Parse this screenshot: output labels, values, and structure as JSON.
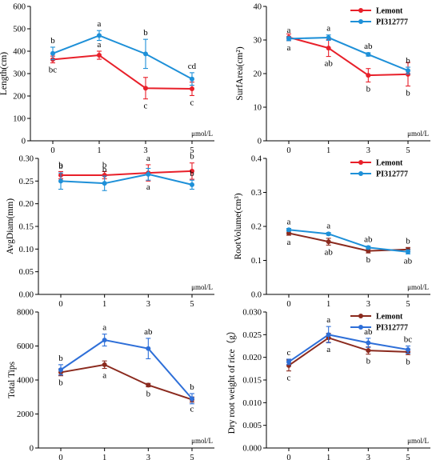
{
  "chart_data": [
    {
      "id": "length",
      "type": "line",
      "ylabel": "Length(cm)",
      "unit": "μmol/L",
      "categories": [
        "0",
        "1",
        "3",
        "5"
      ],
      "ylim": [
        0,
        600
      ],
      "yticks": [
        0,
        100,
        200,
        300,
        400,
        500,
        600
      ],
      "legend": null,
      "series": [
        {
          "name": "Lemont",
          "color": "#e8202a",
          "values": [
            363,
            382,
            235,
            232
          ],
          "errors": [
            15,
            18,
            48,
            30
          ],
          "labels": [
            "bc",
            "a",
            "c",
            "c"
          ]
        },
        {
          "name": "PI312777",
          "color": "#1e90d8",
          "values": [
            390,
            470,
            388,
            276
          ],
          "errors": [
            28,
            22,
            65,
            28
          ],
          "labels": [
            "b",
            "a",
            "b",
            "cd"
          ]
        }
      ]
    },
    {
      "id": "surfarea",
      "type": "line",
      "ylabel": "SurfArea(cm²)",
      "unit": "μmol/L",
      "categories": [
        "0",
        "1",
        "3",
        "5"
      ],
      "ylim": [
        0,
        40
      ],
      "yticks": [
        0,
        10,
        20,
        30,
        40
      ],
      "legend": "top-right",
      "series": [
        {
          "name": "Lemont",
          "color": "#e8202a",
          "values": [
            30.8,
            27.6,
            19.5,
            19.8
          ],
          "errors": [
            1.0,
            2.5,
            2.0,
            3.5
          ],
          "labels": [
            "a",
            "ab",
            "b",
            "b"
          ]
        },
        {
          "name": "PI312777",
          "color": "#1e90d8",
          "values": [
            30.4,
            30.7,
            25.7,
            20.9
          ],
          "errors": [
            0.6,
            0.8,
            0.5,
            1.0
          ],
          "labels": [
            "a",
            "a",
            "ab",
            "b"
          ]
        }
      ]
    },
    {
      "id": "avgdiam",
      "type": "line",
      "ylabel": "AvgDiam(mm)",
      "unit": "μmol/L",
      "categories": [
        "0",
        "1",
        "3",
        "5"
      ],
      "ylim": [
        0.0,
        0.3
      ],
      "yticks": [
        0.0,
        0.05,
        0.1,
        0.15,
        0.2,
        0.25,
        0.3
      ],
      "decimals": 2,
      "legend": null,
      "series": [
        {
          "name": "Lemont",
          "color": "#e8202a",
          "values": [
            0.263,
            0.263,
            0.268,
            0.272
          ],
          "errors": [
            0.008,
            0.008,
            0.018,
            0.018
          ],
          "labels": [
            "b",
            "b",
            "a",
            "b"
          ]
        },
        {
          "name": "PI312777",
          "color": "#1e90d8",
          "values": [
            0.25,
            0.245,
            0.265,
            0.242
          ],
          "errors": [
            0.018,
            0.016,
            0.013,
            0.01
          ],
          "labels": [
            "b",
            "b",
            "a",
            "b"
          ]
        }
      ]
    },
    {
      "id": "rootvolume",
      "type": "line",
      "ylabel": "RootVolume(cm³)",
      "unit": "μmol/L",
      "categories": [
        "0",
        "1",
        "3",
        "5"
      ],
      "ylim": [
        0.0,
        0.4
      ],
      "yticks": [
        0.0,
        0.1,
        0.2,
        0.3,
        0.4
      ],
      "decimals": 1,
      "legend": "top-right",
      "series": [
        {
          "name": "Lemont",
          "color": "#8b2a1e",
          "values": [
            0.18,
            0.155,
            0.128,
            0.132
          ],
          "errors": [
            0.006,
            0.01,
            0.006,
            0.006
          ],
          "labels": [
            "a",
            "ab",
            "b",
            "b"
          ],
          "legend_color": "#e8202a"
        },
        {
          "name": "PI312777",
          "color": "#1e90d8",
          "values": [
            0.19,
            0.178,
            0.138,
            0.125
          ],
          "errors": [
            0.004,
            0.004,
            0.004,
            0.006
          ],
          "labels": [
            "a",
            "a",
            "ab",
            "ab"
          ]
        }
      ]
    },
    {
      "id": "totaltips",
      "type": "line",
      "ylabel": "Total Tips",
      "unit": "μmol/L",
      "categories": [
        "0",
        "1",
        "3",
        "5"
      ],
      "ylim": [
        0,
        8000
      ],
      "yticks": [
        0,
        2000,
        4000,
        6000,
        8000
      ],
      "legend": null,
      "series": [
        {
          "name": "Lemont",
          "color": "#8b2a1e",
          "values": [
            4450,
            4900,
            3700,
            2850
          ],
          "errors": [
            200,
            220,
            100,
            150
          ],
          "labels": [
            "b",
            "a",
            "b",
            "c"
          ]
        },
        {
          "name": "PI312777",
          "color": "#2e6fd8",
          "values": [
            4600,
            6350,
            5850,
            2900
          ],
          "errors": [
            300,
            350,
            600,
            300
          ],
          "labels": [
            "b",
            "a",
            "ab",
            "b"
          ]
        }
      ]
    },
    {
      "id": "dryweight",
      "type": "line",
      "ylabel": "Dry root weight of rice（g）",
      "unit": "μmol/L",
      "categories": [
        "0",
        "1",
        "3",
        "5"
      ],
      "ylim": [
        0.0,
        0.03
      ],
      "yticks": [
        0.0,
        0.005,
        0.01,
        0.015,
        0.02,
        0.025,
        0.03
      ],
      "decimals": 3,
      "legend": "top-right",
      "series": [
        {
          "name": "Lemont",
          "color": "#8b2a1e",
          "values": [
            0.0182,
            0.0243,
            0.0215,
            0.0212
          ],
          "errors": [
            0.0012,
            0.001,
            0.0008,
            0.0006
          ],
          "labels": [
            "c",
            "a",
            "b",
            "b"
          ]
        },
        {
          "name": "PI312777",
          "color": "#2e6fd8",
          "values": [
            0.019,
            0.025,
            0.0232,
            0.0217
          ],
          "errors": [
            0.0006,
            0.0018,
            0.001,
            0.0008
          ],
          "labels": [
            "c",
            "a",
            "ab",
            "bc"
          ]
        }
      ]
    }
  ]
}
